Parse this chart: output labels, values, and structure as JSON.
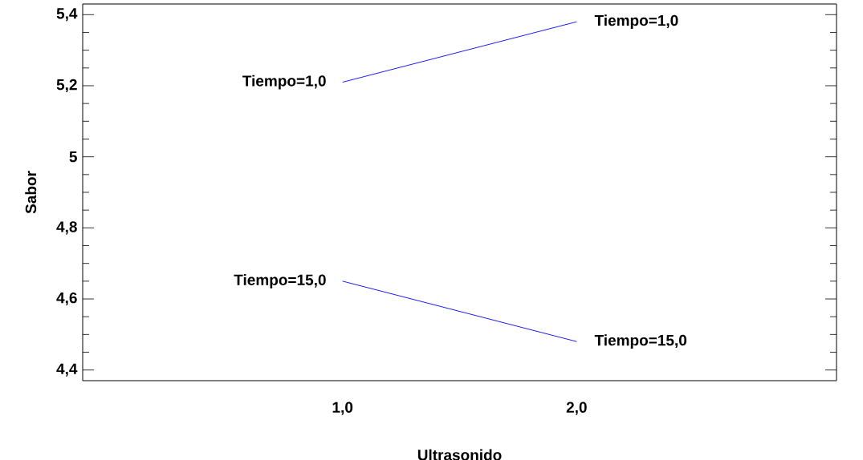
{
  "chart_data": {
    "type": "line",
    "xlabel": "Ultrasonido",
    "ylabel": "Sabor",
    "categories": [
      "1,0",
      "2,0"
    ],
    "ylim": [
      4.37,
      5.43
    ],
    "yticks": [
      {
        "value": 4.4,
        "label": "4,4"
      },
      {
        "value": 4.6,
        "label": "4,6"
      },
      {
        "value": 4.8,
        "label": "4,8"
      },
      {
        "value": 5,
        "label": "5"
      },
      {
        "value": 5.2,
        "label": "5,2"
      },
      {
        "value": 5.4,
        "label": "5,4"
      }
    ],
    "grid": false,
    "legend": false,
    "series": [
      {
        "name": "Tiempo=1,0",
        "color": "#0000ff",
        "values": [
          5.21,
          5.38
        ]
      },
      {
        "name": "Tiempo=15,0",
        "color": "#0000ff",
        "values": [
          4.65,
          4.48
        ]
      }
    ]
  }
}
